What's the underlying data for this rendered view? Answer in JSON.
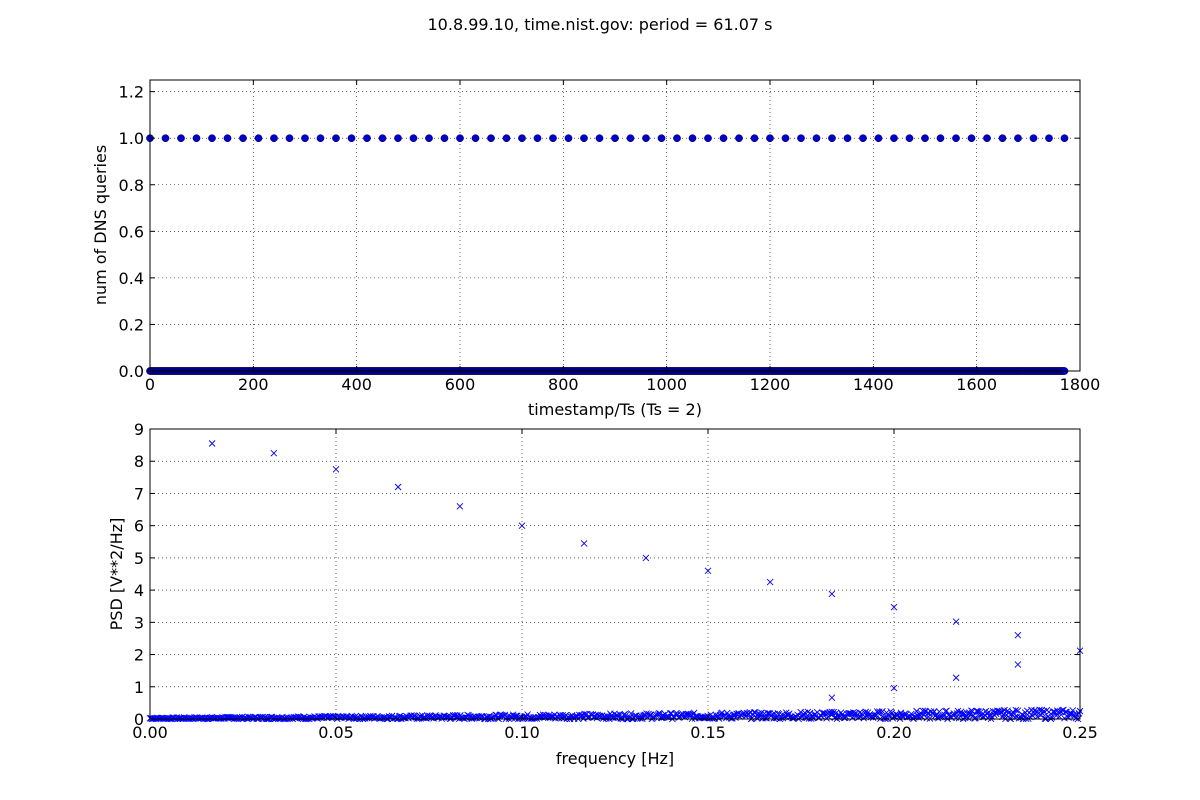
{
  "figure": {
    "title": "10.8.99.10, time.nist.gov: period = 61.07 s"
  },
  "chart_data": [
    {
      "type": "scatter",
      "xlabel": "timestamp/Ts (Ts = 2)",
      "ylabel": "num of DNS queries",
      "xlim": [
        0,
        1800
      ],
      "ylim": [
        0,
        1.25
      ],
      "xticks": [
        0,
        200,
        400,
        600,
        800,
        1000,
        1200,
        1400,
        1600,
        1800
      ],
      "yticks": [
        0.0,
        0.2,
        0.4,
        0.6,
        0.8,
        1.0,
        1.2
      ],
      "xtick_labels": [
        "0",
        "200",
        "400",
        "600",
        "800",
        "1000",
        "1200",
        "1400",
        "1600",
        "1800"
      ],
      "ytick_labels": [
        "0.0",
        "0.2",
        "0.4",
        "0.6",
        "0.8",
        "1.0",
        "1.2"
      ],
      "grid": true,
      "marker": "circle",
      "color": "#0000cc",
      "series": [
        {
          "x_ones": [
            0,
            30,
            60,
            90,
            120,
            150,
            180,
            210,
            240,
            270,
            300,
            330,
            360,
            390,
            420,
            450,
            480,
            510,
            540,
            570,
            600,
            630,
            660,
            690,
            720,
            750,
            780,
            810,
            840,
            870,
            900,
            930,
            960,
            990,
            1020,
            1050,
            1080,
            1110,
            1140,
            1170,
            1200,
            1230,
            1260,
            1290,
            1320,
            1350,
            1380,
            1410,
            1440,
            1470,
            1500,
            1530,
            1560,
            1590,
            1620,
            1650,
            1680,
            1710,
            1740,
            1770
          ],
          "y_ones": 1.0,
          "zeros_x_range": [
            0,
            1770
          ],
          "y_zeros": 0.0
        }
      ]
    },
    {
      "type": "scatter",
      "xlabel": "frequency [Hz]",
      "ylabel": "PSD [V**2/Hz]",
      "xlim": [
        0,
        0.25
      ],
      "ylim": [
        0,
        9
      ],
      "xticks": [
        0.0,
        0.05,
        0.1,
        0.15,
        0.2,
        0.25
      ],
      "yticks": [
        0,
        1,
        2,
        3,
        4,
        5,
        6,
        7,
        8,
        9
      ],
      "xtick_labels": [
        "0.00",
        "0.05",
        "0.10",
        "0.15",
        "0.20",
        "0.25"
      ],
      "ytick_labels": [
        "0",
        "1",
        "2",
        "3",
        "4",
        "5",
        "6",
        "7",
        "8",
        "9"
      ],
      "grid": true,
      "marker": "x",
      "color": "#0000ff",
      "peaks": {
        "x": [
          0.0167,
          0.0333,
          0.05,
          0.0667,
          0.0833,
          0.1,
          0.1167,
          0.1333,
          0.15,
          0.1667,
          0.1833,
          0.2,
          0.2167,
          0.2333,
          0.25
        ],
        "y": [
          8.55,
          8.25,
          7.75,
          7.2,
          6.6,
          6.0,
          5.45,
          5.0,
          4.6,
          4.25,
          3.88,
          3.47,
          3.02,
          2.6,
          2.12
        ]
      },
      "secondary": {
        "x": [
          0.1833,
          0.2,
          0.2167,
          0.2333
        ],
        "y": [
          0.66,
          0.96,
          1.28,
          1.69
        ]
      },
      "noise": {
        "x_range": [
          0,
          0.25
        ],
        "y_max_start": 0.04,
        "y_max_end": 0.3
      }
    }
  ]
}
